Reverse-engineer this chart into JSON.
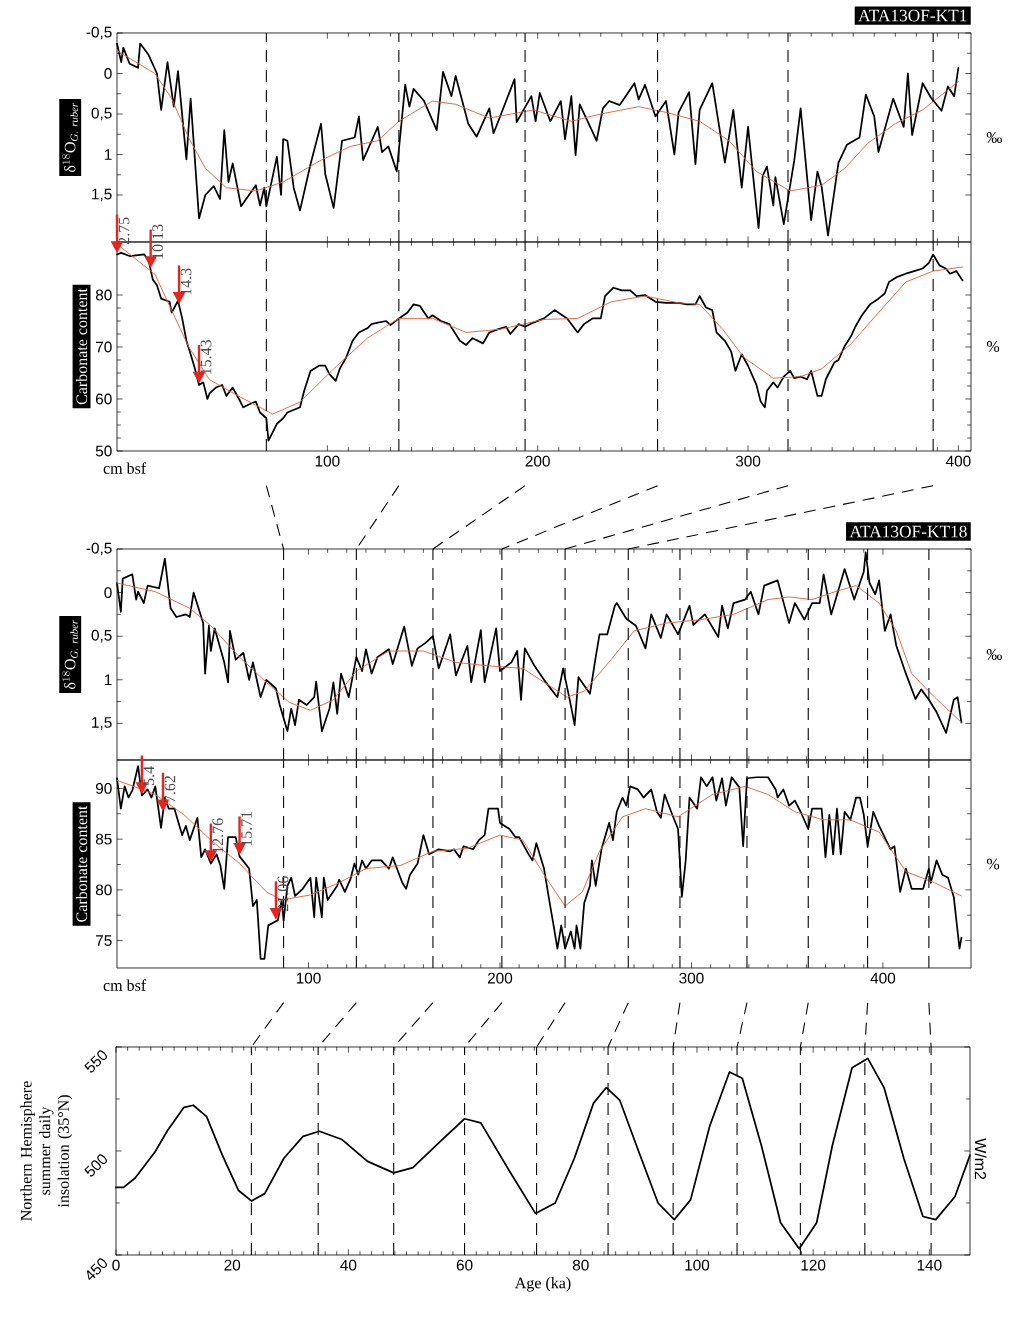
{
  "chart_data": [
    {
      "type": "line",
      "title": "ATA13OF-KT1",
      "ylabel": "\\mathrm{δ}^{18}\\mathrm{O}_{\\mathit{G.\\ ruber}}",
      "y2label": "‰",
      "xlim": [
        0,
        406
      ],
      "ylim": [
        2.08,
        -0.5
      ],
      "xticks": [
        100,
        200,
        300,
        400
      ],
      "yticks": [
        {
          "value": -0.5,
          "label": "-0,5"
        },
        0,
        {
          "value": 0.5,
          "label": "0,5"
        },
        1,
        {
          "value": 1.5,
          "label": "1,5"
        }
      ],
      "tick_labels": "y",
      "series": [
        {
          "color": "#000000",
          "x": [
            0,
            2,
            3,
            6,
            10,
            11,
            15,
            19,
            21,
            24,
            27,
            29,
            33,
            35,
            39,
            42,
            46,
            49,
            51,
            53,
            55,
            59,
            66,
            68,
            70,
            71,
            76,
            78,
            79,
            81,
            84,
            87,
            92,
            97,
            99,
            103,
            107,
            113,
            115,
            117,
            124,
            126,
            129,
            133,
            137,
            139,
            141,
            146,
            152,
            155,
            159,
            161,
            167,
            171,
            177,
            179,
            189,
            190,
            197,
            199,
            201,
            206,
            211,
            213,
            216,
            218,
            220,
            228,
            231,
            234,
            239,
            246,
            248,
            251,
            256,
            261,
            265,
            267,
            272,
            275,
            277,
            283,
            289,
            293,
            297,
            300,
            305,
            307,
            309,
            312,
            313,
            317,
            322,
            325,
            330,
            333,
            335,
            338,
            343,
            347,
            353,
            356,
            360,
            362,
            369,
            374,
            376,
            378,
            383,
            387,
            392,
            395,
            398,
            400
          ],
          "values": [
            -0.37,
            -0.14,
            -0.32,
            -0.12,
            -0.07,
            -0.37,
            -0.23,
            0,
            0.45,
            -0.14,
            0.41,
            -0.03,
            1.06,
            0.31,
            1.79,
            1.5,
            1.39,
            1.55,
            0.7,
            1.34,
            1.11,
            1.64,
            1.38,
            1.63,
            1.41,
            1.64,
            1.03,
            1.5,
            0.81,
            0.83,
            1.41,
            1.69,
            1.12,
            0.62,
            1.24,
            1.66,
            0.83,
            0.79,
            0.53,
            1.07,
            0.66,
            0.97,
            0.9,
            1.21,
            0.14,
            0.41,
            0.19,
            0.34,
            0.7,
            -0.02,
            0.28,
            0.03,
            0.62,
            0.78,
            0.43,
            0.74,
            0.07,
            0.6,
            0.28,
            0.59,
            0.24,
            0.59,
            0.34,
            0.81,
            0.28,
            1.01,
            0.38,
            0.83,
            0.43,
            0.34,
            0.39,
            0.12,
            0.32,
            0.14,
            0.53,
            0.34,
            1.0,
            0.48,
            0.23,
            1.12,
            0.45,
            0.12,
            1.1,
            0.45,
            1.41,
            0.66,
            1.91,
            1.26,
            1.15,
            1.63,
            1.28,
            1.86,
            1.07,
            0.43,
            1.81,
            1.21,
            1.4,
            2.0,
            1.1,
            0.88,
            0.79,
            0.26,
            0.53,
            0.97,
            0.31,
            0.66,
            0,
            0.76,
            0.12,
            0.3,
            0.46,
            0.16,
            0.28,
            -0.07
          ]
        },
        {
          "color": "#e8603c",
          "x": [
            0,
            18,
            26,
            34,
            42,
            52,
            66,
            79,
            97,
            111,
            124,
            134,
            150,
            161,
            177,
            198,
            216,
            230,
            248,
            261,
            277,
            291,
            304,
            320,
            335,
            346,
            357,
            370,
            383,
            400
          ],
          "values": [
            -0.28,
            0,
            0.31,
            0.79,
            1.17,
            1.41,
            1.45,
            1.34,
            1.07,
            0.9,
            0.83,
            0.59,
            0.34,
            0.38,
            0.55,
            0.45,
            0.59,
            0.5,
            0.41,
            0.48,
            0.59,
            0.83,
            1.21,
            1.45,
            1.38,
            1.17,
            0.86,
            0.62,
            0.45,
            0.1
          ]
        }
      ],
      "ref_lines": [
        {
          "axis": "x",
          "value": 71,
          "color": "#000000",
          "line_style": "dashed"
        },
        {
          "axis": "x",
          "value": 134,
          "color": "#000000",
          "line_style": "dashed"
        },
        {
          "axis": "x",
          "value": 194,
          "color": "#000000",
          "line_style": "dashed"
        },
        {
          "axis": "x",
          "value": 257,
          "color": "#000000",
          "line_style": "dashed"
        },
        {
          "axis": "x",
          "value": 319,
          "color": "#000000",
          "line_style": "dashed"
        },
        {
          "axis": "x",
          "value": 388,
          "color": "#000000",
          "line_style": "dashed"
        }
      ]
    },
    {
      "type": "line",
      "xlabel": "cm bsf",
      "ylabel": "Carbonate content",
      "y2label": "%",
      "xlim": [
        0,
        406
      ],
      "ylim": [
        50,
        90.2
      ],
      "xticks": [
        100,
        200,
        300,
        400
      ],
      "yticks": [
        50,
        60,
        70,
        80
      ],
      "series": [
        {
          "color": "#000000",
          "x": [
            0,
            2,
            6,
            13,
            15,
            17,
            19,
            21,
            25,
            26,
            29,
            31,
            33,
            35,
            37,
            39,
            41,
            43,
            44,
            47,
            50,
            52,
            55,
            58,
            60,
            63,
            66,
            68,
            71,
            72,
            74,
            76,
            79,
            81,
            84,
            87,
            89,
            92,
            96,
            99,
            101,
            104,
            106,
            109,
            112,
            115,
            119,
            121,
            124,
            128,
            130,
            134,
            138,
            141,
            144,
            148,
            150,
            154,
            158,
            163,
            166,
            169,
            174,
            177,
            181,
            185,
            187,
            191,
            194,
            198,
            203,
            208,
            214,
            219,
            222,
            226,
            230,
            232,
            236,
            240,
            244,
            247,
            251,
            256,
            261,
            267,
            271,
            275,
            277,
            280,
            283,
            285,
            289,
            292,
            294,
            297,
            300,
            304,
            306,
            308,
            309,
            312,
            314,
            317,
            320,
            322,
            325,
            328,
            330,
            333,
            335,
            337,
            341,
            343,
            346,
            349,
            351,
            354,
            358,
            362,
            365,
            367,
            371,
            375,
            379,
            383,
            386,
            388,
            391,
            394,
            396,
            399,
            402
          ],
          "values": [
            87.8,
            88.1,
            87.5,
            87.8,
            86.7,
            83.0,
            81.9,
            79.3,
            78.7,
            76.6,
            78.9,
            75.5,
            71.2,
            68.6,
            65.9,
            62.7,
            63.2,
            60.0,
            61.1,
            62.2,
            62.7,
            60.6,
            62.2,
            60.0,
            58.4,
            59.0,
            59.5,
            57.4,
            56.3,
            52.0,
            53.6,
            55.2,
            56.3,
            57.4,
            57.9,
            58.4,
            61.6,
            65.4,
            66.4,
            66.4,
            64.8,
            63.5,
            65.9,
            68.0,
            71.2,
            72.8,
            73.6,
            74.4,
            74.7,
            75.0,
            74.2,
            75.5,
            76.6,
            78.2,
            77.9,
            75.5,
            76.1,
            75.0,
            74.4,
            71.2,
            70.4,
            71.7,
            70.7,
            72.8,
            73.4,
            73.9,
            72.5,
            74.4,
            73.9,
            74.7,
            75.5,
            77.1,
            75.5,
            72.8,
            74.4,
            75.5,
            75.5,
            79.8,
            81.4,
            80.9,
            80.9,
            79.8,
            80.0,
            78.7,
            78.5,
            78.5,
            78.2,
            78.2,
            79.8,
            77.6,
            77.1,
            72.8,
            71.2,
            69.1,
            65.4,
            68.6,
            66.4,
            62.7,
            59.5,
            58.4,
            61.6,
            63.2,
            62.2,
            64.3,
            65.4,
            64.0,
            64.3,
            63.8,
            65.4,
            60.6,
            60.6,
            63.8,
            67.0,
            67.5,
            70.2,
            72.1,
            73.9,
            76.0,
            78.2,
            79.3,
            80.3,
            82.5,
            83.5,
            84.1,
            84.6,
            85.1,
            86.2,
            87.8,
            85.7,
            85.1,
            84.1,
            84.6,
            82.8
          ]
        },
        {
          "color": "#e8603c",
          "x": [
            0,
            18,
            34,
            44,
            58,
            74,
            87,
            103,
            119,
            134,
            150,
            166,
            182,
            203,
            219,
            235,
            251,
            267,
            277,
            288,
            298,
            312,
            325,
            335,
            349,
            362,
            375,
            388,
            402
          ],
          "values": [
            89.8,
            84.0,
            70.1,
            63.7,
            60.5,
            57.1,
            59.4,
            65.8,
            71.7,
            75.5,
            75.5,
            72.8,
            73.4,
            75.3,
            75.5,
            78.7,
            79.8,
            78.5,
            78.2,
            73.4,
            68.0,
            64.0,
            64.3,
            65.8,
            70.6,
            76.6,
            82.5,
            84.6,
            85.4
          ]
        }
      ],
      "ref_lines": [
        {
          "axis": "x",
          "value": 71,
          "color": "#000000",
          "line_style": "dashed"
        },
        {
          "axis": "x",
          "value": 134,
          "color": "#000000",
          "line_style": "dashed"
        },
        {
          "axis": "x",
          "value": 194,
          "color": "#000000",
          "line_style": "dashed"
        },
        {
          "axis": "x",
          "value": 257,
          "color": "#000000",
          "line_style": "dashed"
        },
        {
          "axis": "x",
          "value": 319,
          "color": "#000000",
          "line_style": "dashed"
        },
        {
          "axis": "x",
          "value": 388,
          "color": "#000000",
          "line_style": "dashed"
        }
      ],
      "annotations": [
        {
          "text": "2.75",
          "x": 0,
          "y": 87.8
        },
        {
          "text": "10.13",
          "x": 16,
          "y": 84.9
        },
        {
          "text": "14.3",
          "x": 29.5,
          "y": 78.0
        },
        {
          "text": "15.43",
          "x": 39,
          "y": 62.7
        }
      ]
    },
    {
      "type": "line",
      "title": "ATA13OF-KT18",
      "ylabel": "\\mathrm{δ}^{18}\\mathrm{O}_{\\mathit{G.\\ ruber}}",
      "y2label": "‰",
      "xlim": [
        0,
        446
      ],
      "ylim": [
        1.92,
        -0.5
      ],
      "xticks": [
        100,
        200,
        300,
        400
      ],
      "yticks": [
        {
          "value": -0.5,
          "label": "-0,5"
        },
        0,
        {
          "value": 0.5,
          "label": "0,5"
        },
        1,
        {
          "value": 1.5,
          "label": "1,5"
        }
      ],
      "tick_labels": "y",
      "series": [
        {
          "color": "#000000",
          "x": [
            0,
            2,
            3,
            8,
            10,
            11,
            14,
            16,
            22,
            25,
            28,
            31,
            36,
            38,
            40,
            45,
            46,
            48,
            49,
            51,
            56,
            58,
            59,
            62,
            66,
            69,
            71,
            75,
            78,
            83,
            85,
            89,
            91,
            93,
            95,
            99,
            103,
            104,
            107,
            111,
            113,
            115,
            117,
            121,
            125,
            128,
            130,
            133,
            136,
            142,
            144,
            150,
            154,
            157,
            161,
            165,
            168,
            174,
            177,
            183,
            185,
            190,
            192,
            198,
            200,
            206,
            209,
            211,
            213,
            218,
            224,
            230,
            233,
            237,
            239,
            241,
            247,
            250,
            252,
            256,
            260,
            261,
            266,
            271,
            276,
            279,
            284,
            287,
            293,
            299,
            301,
            307,
            314,
            316,
            319,
            322,
            328,
            331,
            335,
            338,
            345,
            351,
            354,
            359,
            363,
            367,
            369,
            373,
            380,
            385,
            390,
            391,
            393,
            396,
            398,
            401,
            404,
            407,
            412,
            417,
            420,
            424,
            428,
            433,
            437,
            439,
            441
          ],
          "values": [
            -0.11,
            0.22,
            -0.16,
            -0.21,
            0.08,
            -0.01,
            0.12,
            -0.08,
            -0.05,
            -0.39,
            0.18,
            0.28,
            0.25,
            0.28,
            0,
            0.35,
            0.93,
            0.38,
            0.67,
            0.41,
            0.8,
            1.03,
            0.44,
            0.77,
            0.69,
            1.0,
            0.8,
            1.2,
            1.0,
            1.1,
            1.29,
            1.59,
            1.33,
            1.52,
            1.23,
            1.29,
            1.2,
            1.02,
            1.59,
            1.33,
            1.03,
            1.39,
            0.93,
            1.2,
            0.74,
            0.9,
            0.65,
            0.93,
            0.74,
            0.65,
            0.82,
            0.39,
            0.84,
            0.64,
            0.58,
            0.5,
            0.87,
            0.48,
            0.95,
            0.61,
            1.03,
            0.43,
            1.03,
            0.41,
            0.9,
            0.8,
            0.67,
            1.23,
            0.64,
            0.84,
            1.03,
            1.2,
            0.87,
            1.29,
            1.52,
            0.97,
            1.16,
            0.74,
            0.48,
            0.48,
            0.15,
            0.12,
            0.3,
            0.38,
            0.64,
            0.25,
            0.52,
            0.25,
            0.48,
            0.15,
            0.37,
            0.25,
            0.51,
            0.15,
            0.41,
            0.12,
            0.08,
            -0.01,
            0.25,
            -0.08,
            -0.14,
            0.35,
            0.12,
            0.31,
            0.12,
            0.12,
            -0.21,
            0.25,
            -0.27,
            0.08,
            -0.24,
            -0.46,
            -0.11,
            0.02,
            -0.14,
            0.44,
            0.25,
            0.61,
            0.93,
            1.22,
            1.11,
            1.23,
            1.37,
            1.61,
            1.23,
            1.2,
            1.49
          ]
        },
        {
          "color": "#e8603c",
          "x": [
            0,
            20,
            38,
            49,
            64,
            78,
            90,
            101,
            113,
            125,
            142,
            160,
            177,
            194,
            212,
            226,
            235,
            244,
            258,
            270,
            287,
            305,
            322,
            340,
            351,
            363,
            375,
            386,
            398,
            407,
            415,
            427,
            441
          ],
          "values": [
            -0.11,
            -0.01,
            0.18,
            0.38,
            0.74,
            1.03,
            1.26,
            1.35,
            1.23,
            0.9,
            0.67,
            0.67,
            0.8,
            0.84,
            0.87,
            1.07,
            1.2,
            1.13,
            0.77,
            0.44,
            0.35,
            0.31,
            0.25,
            0.08,
            0.05,
            0.08,
            -0.01,
            -0.08,
            0.12,
            0.44,
            0.93,
            1.2,
            1.49
          ]
        }
      ],
      "ref_lines": [
        {
          "axis": "x",
          "value": 87,
          "color": "#000000",
          "line_style": "dashed"
        },
        {
          "axis": "x",
          "value": 125,
          "color": "#000000",
          "line_style": "dashed"
        },
        {
          "axis": "x",
          "value": 165,
          "color": "#000000",
          "line_style": "dashed"
        },
        {
          "axis": "x",
          "value": 201,
          "color": "#000000",
          "line_style": "dashed"
        },
        {
          "axis": "x",
          "value": 234,
          "color": "#000000",
          "line_style": "dashed"
        },
        {
          "axis": "x",
          "value": 267,
          "color": "#000000",
          "line_style": "dashed"
        },
        {
          "axis": "x",
          "value": 294,
          "color": "#000000",
          "line_style": "dashed"
        },
        {
          "axis": "x",
          "value": 329,
          "color": "#000000",
          "line_style": "dashed"
        },
        {
          "axis": "x",
          "value": 361,
          "color": "#000000",
          "line_style": "dashed"
        },
        {
          "axis": "x",
          "value": 392,
          "color": "#000000",
          "line_style": "dashed"
        },
        {
          "axis": "x",
          "value": 424,
          "color": "#000000",
          "line_style": "dashed"
        }
      ]
    },
    {
      "type": "line",
      "xlabel": "cm bsf",
      "ylabel": "Carbonate content",
      "y2label": "%",
      "xlim": [
        0,
        446
      ],
      "ylim": [
        72.3,
        92.8
      ],
      "xticks": [
        100,
        200,
        300,
        400
      ],
      "yticks": [
        75,
        80,
        85,
        90
      ],
      "series": [
        {
          "color": "#000000",
          "x": [
            0,
            2,
            4,
            6,
            8,
            11,
            13,
            16,
            18,
            20,
            23,
            25,
            27,
            30,
            34,
            36,
            38,
            42,
            44,
            46,
            49,
            52,
            54,
            56,
            58,
            62,
            64,
            69,
            71,
            73,
            75,
            77,
            79,
            84,
            86,
            87,
            89,
            91,
            93,
            97,
            101,
            103,
            104,
            107,
            108,
            110,
            115,
            116,
            119,
            122,
            124,
            126,
            128,
            130,
            133,
            138,
            142,
            144,
            149,
            151,
            153,
            157,
            160,
            163,
            168,
            174,
            176,
            179,
            181,
            186,
            189,
            192,
            194,
            199,
            200,
            205,
            208,
            210,
            215,
            217,
            219,
            223,
            226,
            228,
            230,
            232,
            234,
            237,
            239,
            240,
            242,
            244,
            247,
            248,
            250,
            253,
            257,
            259,
            261,
            264,
            266,
            268,
            272,
            275,
            279,
            282,
            284,
            286,
            290,
            293,
            295,
            297,
            299,
            303,
            305,
            308,
            311,
            313,
            316,
            318,
            321,
            325,
            327,
            329,
            334,
            340,
            344,
            345,
            348,
            351,
            354,
            357,
            361,
            363,
            368,
            370,
            372,
            374,
            376,
            378,
            380,
            383,
            386,
            388,
            390,
            392,
            395,
            398,
            404,
            406,
            409,
            412,
            415,
            421,
            424,
            425,
            428,
            431,
            434,
            437,
            440,
            441
          ],
          "values": [
            91.0,
            88.0,
            90.2,
            89.1,
            89.8,
            92.2,
            89.3,
            89.9,
            89.1,
            90.2,
            86.1,
            89.1,
            88.0,
            88.0,
            85.4,
            86.3,
            84.9,
            87.1,
            83.2,
            84.0,
            82.6,
            83.5,
            82.4,
            80.1,
            85.2,
            85.2,
            83.3,
            82.1,
            78.4,
            79.0,
            73.2,
            73.2,
            76.5,
            77.0,
            79.0,
            77.0,
            80.4,
            81.2,
            79.4,
            80.1,
            81.2,
            77.3,
            81.2,
            77.3,
            81.2,
            79.0,
            80.4,
            81.0,
            79.8,
            81.1,
            82.6,
            81.5,
            82.9,
            82.1,
            82.9,
            82.9,
            82.1,
            83.2,
            80.7,
            80.1,
            81.5,
            82.6,
            85.4,
            83.5,
            84.0,
            83.8,
            84.0,
            83.2,
            84.3,
            84.0,
            84.9,
            85.4,
            88.0,
            88.0,
            86.6,
            86.0,
            85.2,
            85.2,
            83.5,
            82.9,
            84.6,
            82.1,
            78.7,
            76.5,
            74.2,
            76.5,
            74.2,
            75.9,
            74.2,
            76.5,
            74.2,
            78.7,
            80.4,
            82.9,
            80.4,
            84.0,
            86.6,
            84.9,
            87.7,
            89.1,
            88.3,
            90.2,
            89.9,
            89.1,
            89.9,
            87.7,
            87.1,
            89.4,
            87.4,
            86.0,
            79.3,
            82.9,
            89.1,
            88.0,
            91.1,
            90.2,
            91.1,
            88.8,
            91.0,
            88.3,
            91.1,
            90.1,
            84.3,
            91.0,
            91.1,
            91.1,
            89.9,
            89.1,
            89.9,
            88.3,
            88.8,
            87.7,
            86.0,
            88.0,
            88.0,
            83.2,
            87.4,
            83.5,
            88.0,
            83.5,
            87.7,
            86.9,
            89.1,
            89.1,
            87.4,
            84.3,
            87.7,
            86.3,
            84.0,
            84.3,
            79.8,
            82.1,
            80.1,
            80.1,
            82.1,
            80.7,
            82.9,
            81.5,
            81.2,
            79.3,
            74.2,
            75.3
          ]
        },
        {
          "color": "#e8603c",
          "x": [
            0,
            20,
            35,
            49,
            64,
            78,
            86,
            101,
            116,
            130,
            148,
            165,
            183,
            200,
            212,
            223,
            234,
            243,
            252,
            264,
            276,
            293,
            311,
            328,
            340,
            354,
            369,
            383,
            398,
            412,
            427,
            441
          ],
          "values": [
            90.8,
            89.4,
            87.4,
            84.9,
            82.6,
            79.8,
            79.0,
            79.5,
            80.7,
            82.1,
            82.4,
            83.8,
            84.1,
            85.4,
            84.9,
            81.5,
            78.4,
            79.8,
            83.8,
            87.2,
            88.0,
            87.2,
            89.4,
            90.2,
            89.4,
            87.7,
            86.9,
            86.9,
            85.7,
            81.8,
            80.7,
            79.4
          ]
        }
      ],
      "ref_lines": [
        {
          "axis": "x",
          "value": 87,
          "color": "#000000",
          "line_style": "dashed"
        },
        {
          "axis": "x",
          "value": 125,
          "color": "#000000",
          "line_style": "dashed"
        },
        {
          "axis": "x",
          "value": 165,
          "color": "#000000",
          "line_style": "dashed"
        },
        {
          "axis": "x",
          "value": 201,
          "color": "#000000",
          "line_style": "dashed"
        },
        {
          "axis": "x",
          "value": 234,
          "color": "#000000",
          "line_style": "dashed"
        },
        {
          "axis": "x",
          "value": 267,
          "color": "#000000",
          "line_style": "dashed"
        },
        {
          "axis": "x",
          "value": 294,
          "color": "#000000",
          "line_style": "dashed"
        },
        {
          "axis": "x",
          "value": 329,
          "color": "#000000",
          "line_style": "dashed"
        },
        {
          "axis": "x",
          "value": 361,
          "color": "#000000",
          "line_style": "dashed"
        },
        {
          "axis": "x",
          "value": 392,
          "color": "#000000",
          "line_style": "dashed"
        },
        {
          "axis": "x",
          "value": 424,
          "color": "#000000",
          "line_style": "dashed"
        }
      ],
      "annotations": [
        {
          "text": "5.4",
          "x": 13,
          "y": 89.3
        },
        {
          "text": "7.62",
          "x": 24,
          "y": 87.6
        },
        {
          "text": "12.76",
          "x": 49,
          "y": 82.6
        },
        {
          "text": "15.71",
          "x": 64,
          "y": 83.3
        },
        {
          "text": "21.06",
          "x": 83,
          "y": 76.9
        }
      ]
    },
    {
      "type": "line",
      "xlabel": "Age (ka)",
      "ylabel": "Northern Hemisphere summer daily insolation (35°N)",
      "y2label": "W/m2",
      "xlim": [
        0,
        147
      ],
      "ylim": [
        450,
        550
      ],
      "xticks": [
        0,
        20,
        40,
        60,
        80,
        100,
        120,
        140
      ],
      "yticks": [
        450,
        500,
        550
      ],
      "series": [
        {
          "color": "#000000",
          "x": [
            0,
            1.3,
            3.3,
            6.7,
            8.9,
            11.7,
            13.3,
            15.6,
            18.3,
            21.1,
            23.3,
            25.6,
            28.9,
            32.2,
            35,
            38.9,
            43.3,
            47.8,
            51.1,
            55.6,
            60,
            62.8,
            67.8,
            72.2,
            75.6,
            78.9,
            82.2,
            84.4,
            86.7,
            90,
            93.3,
            96.1,
            98.9,
            102.2,
            105.6,
            107.8,
            111.1,
            114.4,
            117.6,
            120.6,
            123.3,
            126.7,
            129.4,
            132.2,
            135.6,
            138.9,
            141.1,
            144.4,
            147
          ],
          "values": [
            482.5,
            482.5,
            487,
            499.5,
            510,
            521,
            522,
            516.5,
            498,
            481,
            476,
            479.5,
            496.5,
            507,
            509.5,
            505.5,
            495,
            489.5,
            492,
            504,
            515.5,
            513.5,
            490,
            470,
            475,
            496.5,
            523,
            530.5,
            524.5,
            499.5,
            475,
            467,
            476.5,
            512,
            538,
            535,
            502.5,
            465.5,
            453,
            465.5,
            502.5,
            540,
            544.5,
            530.5,
            496.5,
            468.5,
            467,
            478,
            498
          ]
        }
      ],
      "ref_lines": [
        {
          "axis": "x",
          "value": 23.3,
          "color": "#000000",
          "line_style": "dashed"
        },
        {
          "axis": "x",
          "value": 34.8,
          "color": "#000000",
          "line_style": "dashed"
        },
        {
          "axis": "x",
          "value": 47.8,
          "color": "#000000",
          "line_style": "dashed"
        },
        {
          "axis": "x",
          "value": 60,
          "color": "#000000",
          "line_style": "dashed"
        },
        {
          "axis": "x",
          "value": 72.4,
          "color": "#000000",
          "line_style": "dashed"
        },
        {
          "axis": "x",
          "value": 84.7,
          "color": "#000000",
          "line_style": "dashed"
        },
        {
          "axis": "x",
          "value": 95.9,
          "color": "#000000",
          "line_style": "dashed"
        },
        {
          "axis": "x",
          "value": 106.9,
          "color": "#000000",
          "line_style": "dashed"
        },
        {
          "axis": "x",
          "value": 117.8,
          "color": "#000000",
          "line_style": "dashed"
        },
        {
          "axis": "x",
          "value": 128.9,
          "color": "#000000",
          "line_style": "dashed"
        },
        {
          "axis": "x",
          "value": 140.3,
          "color": "#000000",
          "line_style": "dashed"
        }
      ]
    }
  ]
}
